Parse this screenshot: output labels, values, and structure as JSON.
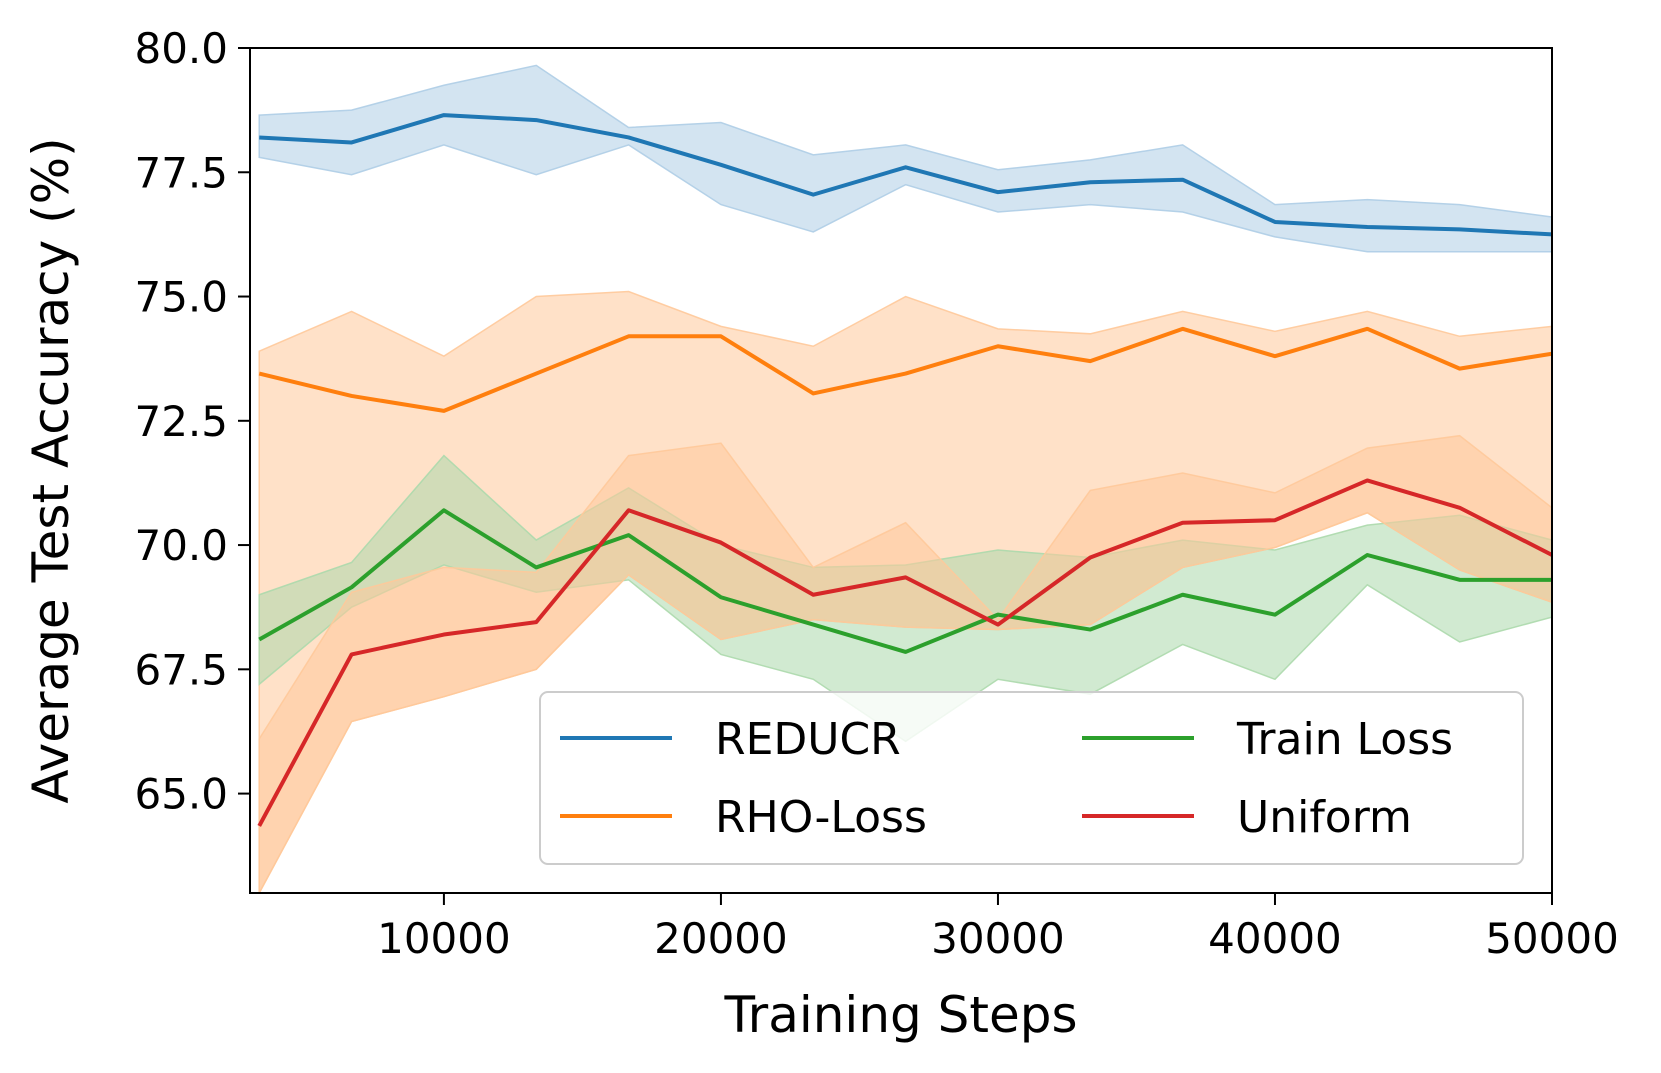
{
  "chart_data": {
    "type": "line",
    "title": "",
    "xlabel": "Training Steps",
    "ylabel": "Average Test Accuracy (%)",
    "xlim": [
      3000,
      50000
    ],
    "ylim": [
      63,
      80
    ],
    "x_ticks": [
      10000,
      20000,
      30000,
      40000,
      50000
    ],
    "y_ticks": [
      65.0,
      67.5,
      70.0,
      72.5,
      75.0,
      77.5,
      80.0
    ],
    "x_tick_labels": [
      "10000",
      "20000",
      "30000",
      "40000",
      "50000"
    ],
    "y_tick_labels": [
      "65.0",
      "67.5",
      "70.0",
      "72.5",
      "75.0",
      "77.5",
      "80.0"
    ],
    "grid": false,
    "legend": {
      "placement": "lower-right",
      "columns": 2
    },
    "x": [
      3333,
      6667,
      10000,
      13333,
      16667,
      20000,
      23333,
      26667,
      30000,
      33333,
      36667,
      40000,
      43333,
      46667,
      50000
    ],
    "series": [
      {
        "name": "REDUCR",
        "color": "#1f77b4",
        "fill": "#aecde6",
        "values": [
          78.2,
          78.1,
          78.65,
          78.55,
          78.2,
          77.65,
          77.05,
          77.6,
          77.1,
          77.3,
          77.35,
          76.5,
          76.4,
          76.35,
          76.25
        ],
        "lower": [
          77.8,
          77.45,
          78.05,
          77.45,
          78.05,
          76.85,
          76.3,
          77.25,
          76.7,
          76.85,
          76.7,
          76.2,
          75.9,
          75.9,
          75.9
        ],
        "upper": [
          78.65,
          78.75,
          79.25,
          79.65,
          78.4,
          78.5,
          77.85,
          78.05,
          77.55,
          77.75,
          78.05,
          76.85,
          76.95,
          76.85,
          76.6
        ]
      },
      {
        "name": "RHO-Loss",
        "color": "#ff7f0e",
        "fill": "#ffd3ad",
        "values": [
          73.45,
          73.0,
          72.7,
          73.45,
          74.2,
          74.2,
          73.05,
          73.45,
          74.0,
          73.7,
          74.35,
          73.8,
          74.35,
          73.55,
          73.85
        ],
        "lower": [
          63.0,
          66.45,
          66.95,
          67.5,
          69.4,
          68.1,
          68.5,
          68.35,
          68.3,
          68.4,
          69.55,
          69.95,
          70.65,
          69.5,
          68.85
        ],
        "upper": [
          73.9,
          74.7,
          73.8,
          75.0,
          75.1,
          74.4,
          74.0,
          75.0,
          74.35,
          74.25,
          74.7,
          74.3,
          74.7,
          74.2,
          74.4
        ]
      },
      {
        "name": "Train Loss",
        "color": "#2ca02c",
        "fill": "#c2e2c2",
        "values": [
          68.1,
          69.15,
          70.7,
          69.55,
          70.2,
          68.95,
          68.4,
          67.85,
          68.6,
          68.3,
          69.0,
          68.6,
          69.8,
          69.3,
          69.3
        ],
        "lower": [
          67.2,
          68.75,
          69.6,
          69.05,
          69.3,
          67.8,
          67.3,
          66.05,
          67.3,
          67.0,
          68.0,
          67.3,
          69.2,
          68.05,
          68.55
        ],
        "upper": [
          69.0,
          69.65,
          71.8,
          70.1,
          71.15,
          70.0,
          69.55,
          69.6,
          69.9,
          69.75,
          70.1,
          69.9,
          70.4,
          70.6,
          70.1
        ]
      },
      {
        "name": "Uniform",
        "color": "#d62728",
        "fill": null,
        "values": [
          64.35,
          67.8,
          68.2,
          68.45,
          70.7,
          70.05,
          69.0,
          69.35,
          68.4,
          69.75,
          70.45,
          70.5,
          71.3,
          70.75,
          69.8
        ],
        "lower": [
          63.0,
          66.45,
          66.95,
          67.5,
          69.4,
          68.1,
          68.5,
          68.35,
          68.3,
          68.4,
          69.55,
          69.95,
          70.65,
          69.5,
          68.85
        ],
        "upper": [
          66.1,
          69.05,
          69.55,
          69.45,
          71.8,
          72.05,
          69.55,
          70.45,
          68.5,
          71.1,
          71.45,
          71.05,
          71.95,
          72.2,
          70.75
        ]
      }
    ]
  }
}
